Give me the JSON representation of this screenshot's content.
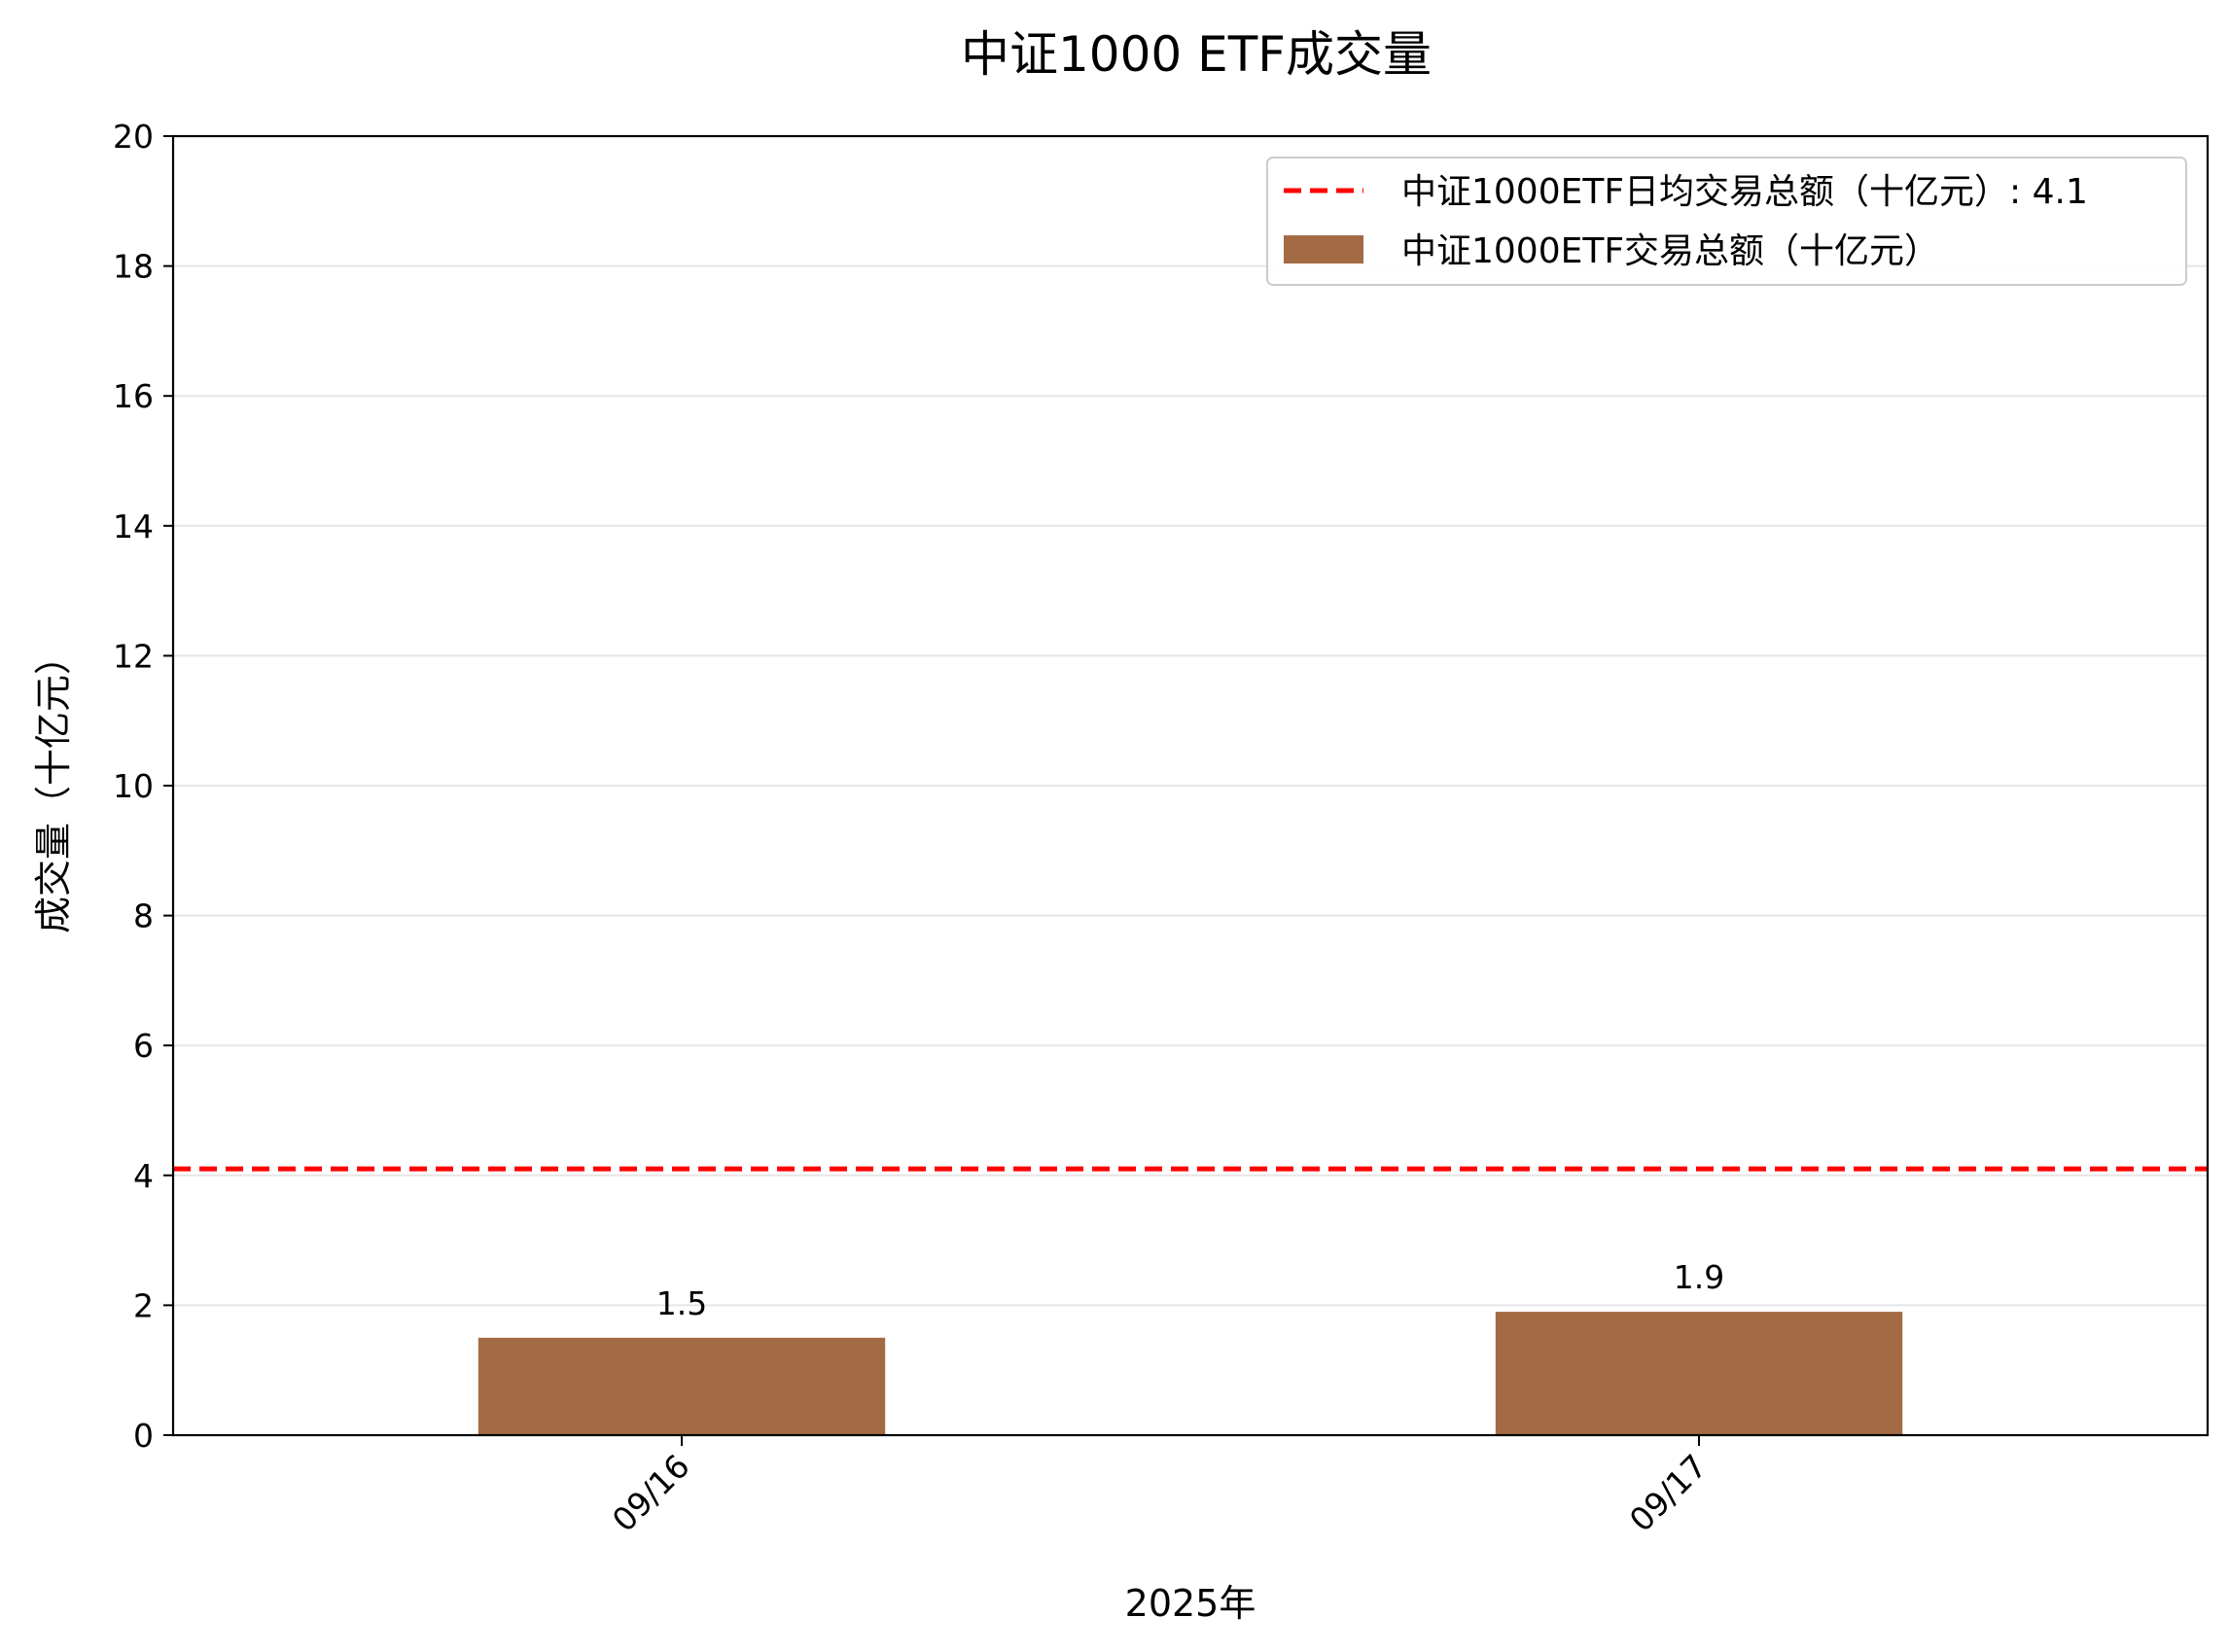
{
  "chart_data": {
    "type": "bar",
    "title": "中证1000 ETF成交量",
    "xlabel": "2025年",
    "ylabel": "成交量（十亿元）",
    "categories": [
      "09/16",
      "09/17"
    ],
    "series": [
      {
        "name": "中证1000ETF交易总额（十亿元）",
        "values": [
          1.5,
          1.9
        ],
        "value_labels": [
          "1.5",
          "1.9"
        ],
        "color": "#a36b44"
      }
    ],
    "reference_line": {
      "label": "中证1000ETF日均交易总额（十亿元）: 4.1",
      "value": 4.1,
      "color": "#ff0000",
      "style": "dashed"
    },
    "ylim": [
      0,
      20
    ],
    "yticks": [
      0,
      2,
      4,
      6,
      8,
      10,
      12,
      14,
      16,
      18,
      20
    ],
    "grid": "horizontal",
    "legend_position": "top-right"
  }
}
